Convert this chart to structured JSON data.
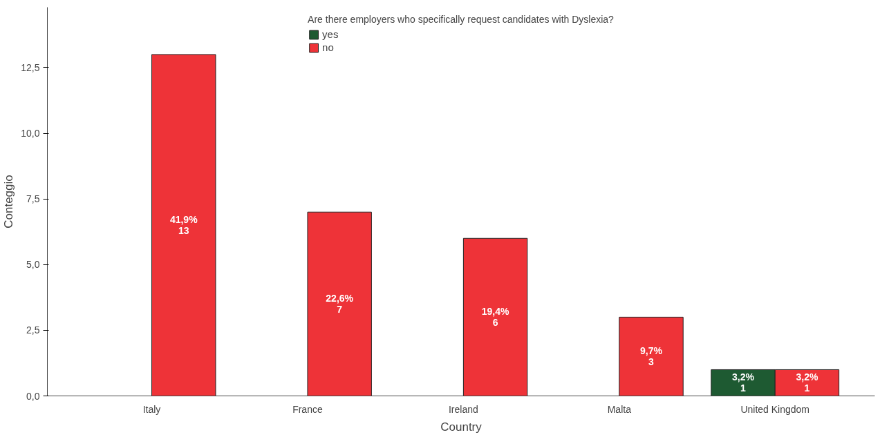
{
  "chart_data": {
    "type": "bar",
    "xlabel": "Country",
    "ylabel": "Conteggio",
    "legend_title": "Are there employers who specifically request candidates with Dyslexia?",
    "categories": [
      "Italy",
      "France",
      "Ireland",
      "Malta",
      "United Kingdom"
    ],
    "series": [
      {
        "name": "yes",
        "color": "#1e5a32",
        "values": [
          null,
          null,
          null,
          null,
          1
        ],
        "value_labels": [
          null,
          null,
          null,
          null,
          "3,2%\n1"
        ]
      },
      {
        "name": "no",
        "color": "#ee3338",
        "values": [
          13,
          7,
          6,
          3,
          1
        ],
        "value_labels": [
          "41,9%\n13",
          "22,6%\n7",
          "19,4%\n6",
          "9,7%\n3",
          "3,2%\n1"
        ]
      }
    ],
    "ylim": [
      0,
      14.8
    ],
    "yticks": [
      {
        "value": 0,
        "label": "0,0"
      },
      {
        "value": 2.5,
        "label": "2,5"
      },
      {
        "value": 5,
        "label": "5,0"
      },
      {
        "value": 7.5,
        "label": "7,5"
      },
      {
        "value": 10,
        "label": "10,0"
      },
      {
        "value": 12.5,
        "label": "12,5"
      }
    ],
    "grid": false,
    "legend": "top"
  }
}
